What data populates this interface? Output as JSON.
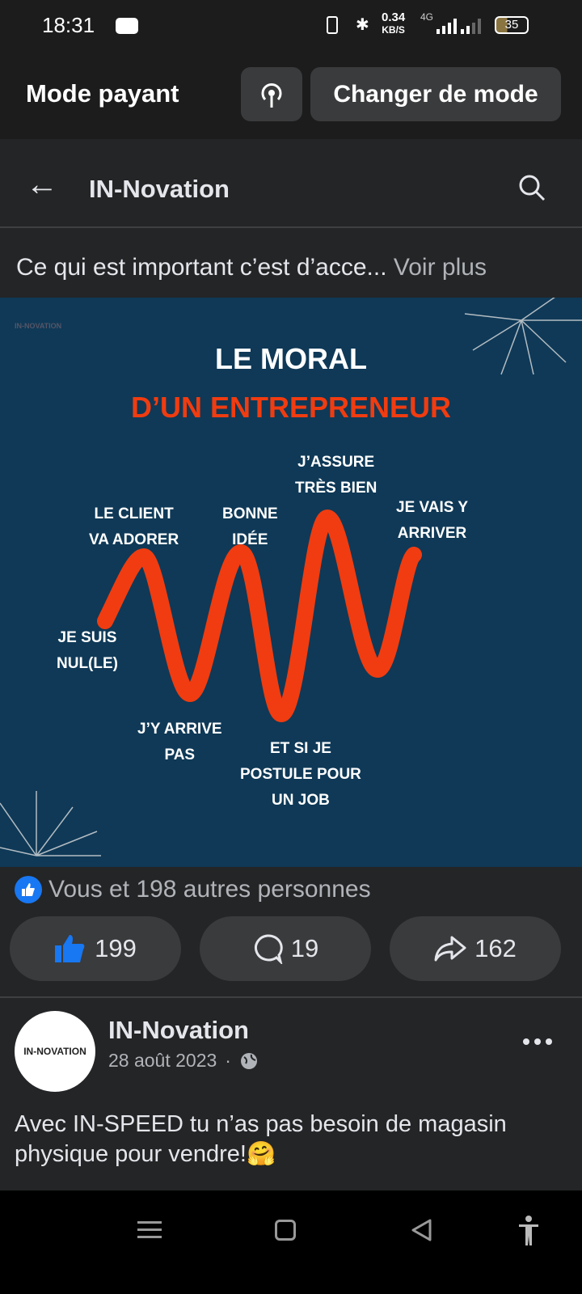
{
  "status": {
    "time": "18:31",
    "speed": "0.34",
    "speed_unit": "KB/S",
    "network": "4G",
    "battery": "35"
  },
  "topbar": {
    "mode": "Mode payant",
    "change": "Changer de mode"
  },
  "header": {
    "title": "IN-Novation"
  },
  "caption": {
    "text": "Ce qui est important c’est d’acce...",
    "more": "Voir plus"
  },
  "image": {
    "logo": "IN-NOVATION",
    "title1": "LE MORAL",
    "title2": "D’UN ENTREPRENEUR",
    "labels": [
      "JE SUIS\nNUL(LE)",
      "LE CLIENT\nVA ADORER",
      "J’Y ARRIVE\nPAS",
      "BONNE\nIDÉE",
      "ET SI JE\nPOSTULE POUR\nUN JOB",
      "J’ASSURE\nTRÈS BIEN",
      "JE VAIS Y\nARRIVER"
    ],
    "colors": {
      "bg": "#0f3957",
      "accent": "#f03c10"
    }
  },
  "reactions": {
    "summary": "Vous et 198 autres personnes",
    "likes": "199",
    "comments": "19",
    "shares": "162"
  },
  "post": {
    "author": "IN-Novation",
    "avatar_text": "IN-NOVATION",
    "date": "28 août 2023",
    "separator": "·",
    "text": "Avec IN-SPEED tu n’as pas besoin de magasin physique pour vendre!🤗"
  }
}
